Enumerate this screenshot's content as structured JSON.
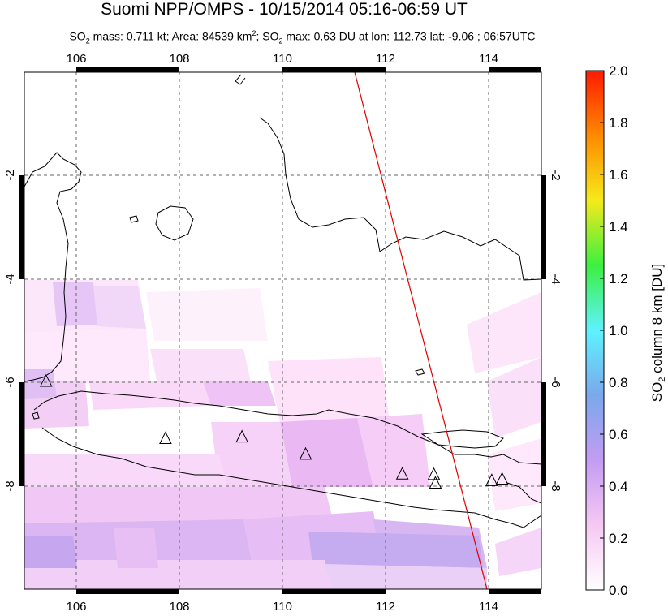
{
  "title": "Suomi NPP/OMPS - 10/15/2014 05:16-06:59 UT",
  "subtitle": {
    "p1": "SO",
    "p1sub": "2",
    "p2": " mass: 0.711 kt; Area: 84539 km",
    "p2sup": "2",
    "p3": "; SO",
    "p3sub": "2",
    "p4": " max: 0.63 DU at lon: 112.73 lat: -9.06 ; 06:57UTC"
  },
  "map": {
    "lon_range": [
      105,
      115
    ],
    "lat_range": [
      -10.2,
      0
    ],
    "lon_ticks": [
      "106",
      "108",
      "110",
      "112",
      "114"
    ],
    "lat_ticks": [
      "-2",
      "-4",
      "-6",
      "-8"
    ],
    "grid": "dashed"
  },
  "colorbar": {
    "label_main": "SO",
    "label_sub": "2",
    "label_rest": " column 8 km [DU]",
    "ticks": [
      "2.0",
      "1.8",
      "1.6",
      "1.4",
      "1.2",
      "1.0",
      "0.8",
      "0.6",
      "0.4",
      "0.2",
      "0.0"
    ],
    "range": [
      0,
      2.0
    ],
    "colors": [
      "#ffffff",
      "#f6c8f3",
      "#c39cf3",
      "#7aa8ec",
      "#5ef2ff",
      "#3cf040",
      "#f5ea1a",
      "#ff8a00",
      "#ff1a00"
    ]
  },
  "volcanoes": [
    {
      "lon": 105.42,
      "lat": -6.1
    },
    {
      "lon": 107.73,
      "lat": -7.23
    },
    {
      "lon": 109.21,
      "lat": -7.2
    },
    {
      "lon": 110.44,
      "lat": -7.54
    },
    {
      "lon": 112.31,
      "lat": -7.93
    },
    {
      "lon": 112.92,
      "lat": -7.94
    },
    {
      "lon": 112.95,
      "lat": -8.11
    },
    {
      "lon": 114.04,
      "lat": -8.06
    },
    {
      "lon": 114.24,
      "lat": -8.03
    }
  ],
  "orbit_track_color": "#e00000"
}
